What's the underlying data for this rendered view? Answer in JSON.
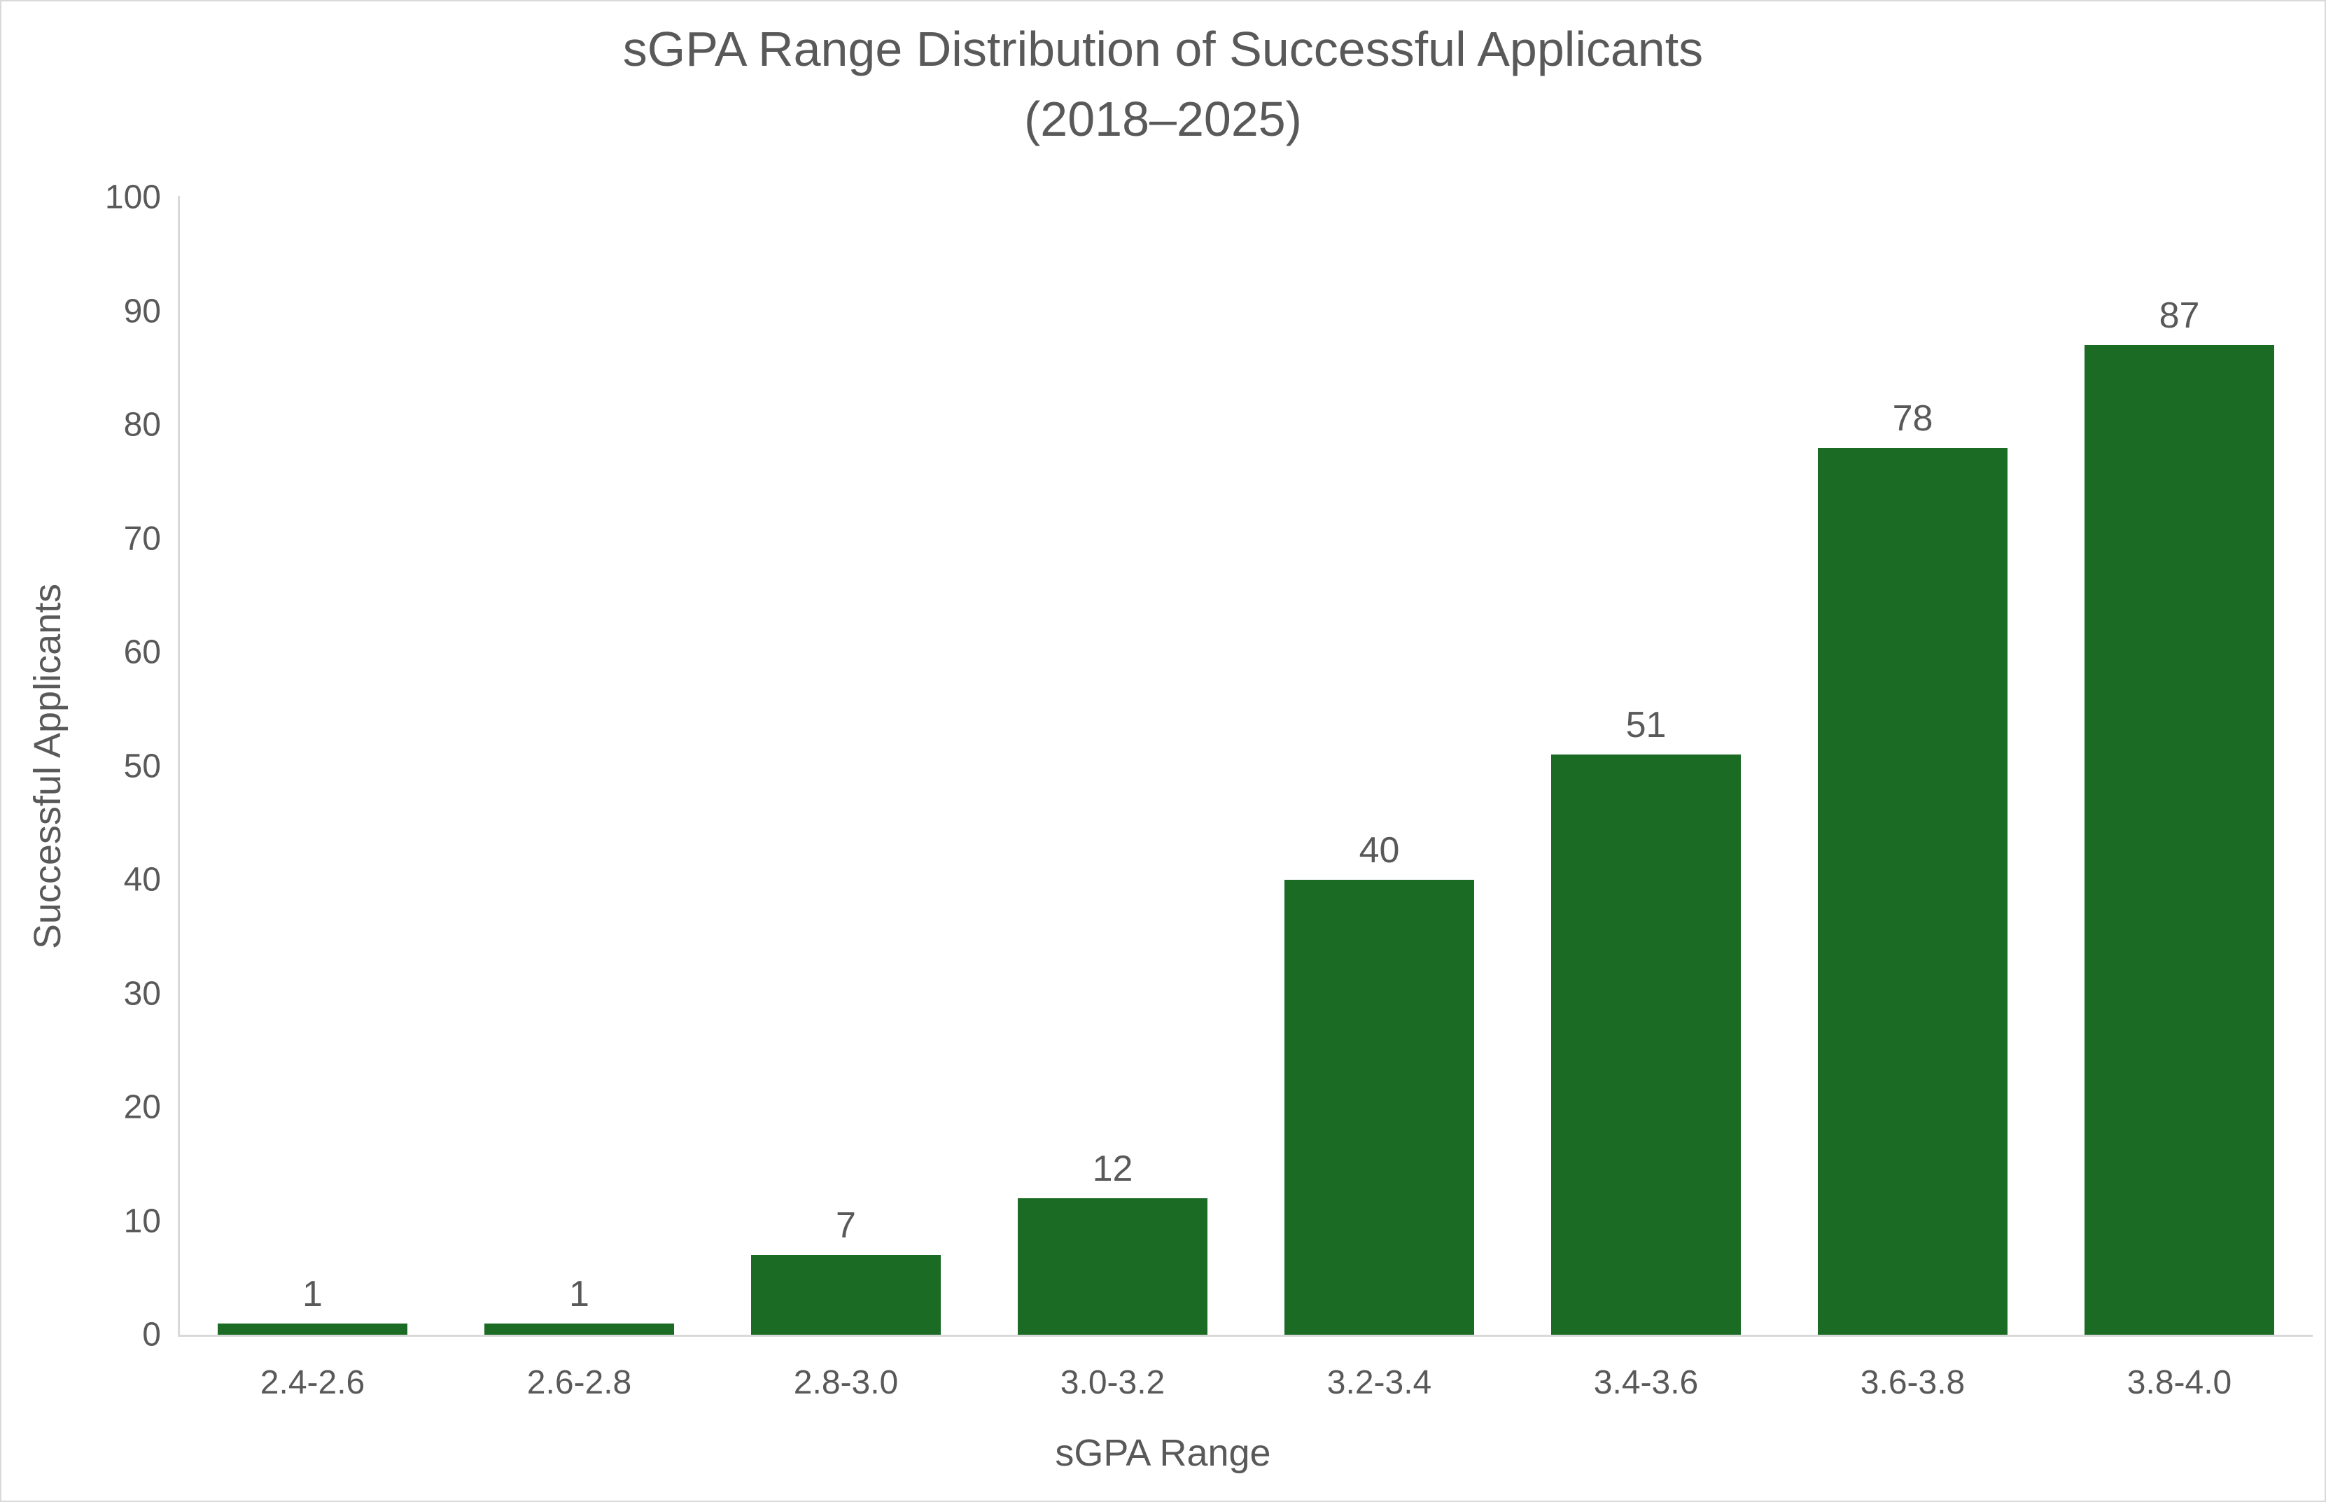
{
  "chart_data": {
    "type": "bar",
    "title": "sGPA Range Distribution of Successful Applicants",
    "subtitle": "(2018–2025)",
    "xlabel": "sGPA Range",
    "ylabel": "Successful Applicants",
    "categories": [
      "2.4-2.6",
      "2.6-2.8",
      "2.8-3.0",
      "3.0-3.2",
      "3.2-3.4",
      "3.4-3.6",
      "3.6-3.8",
      "3.8-4.0"
    ],
    "values": [
      1,
      1,
      7,
      12,
      40,
      51,
      78,
      87
    ],
    "ylim": [
      0,
      100
    ],
    "yticks": [
      0,
      10,
      20,
      30,
      40,
      50,
      60,
      70,
      80,
      90,
      100
    ],
    "grid": false,
    "legend": null,
    "data_labels": true,
    "bar_color": "#1b6b25"
  }
}
